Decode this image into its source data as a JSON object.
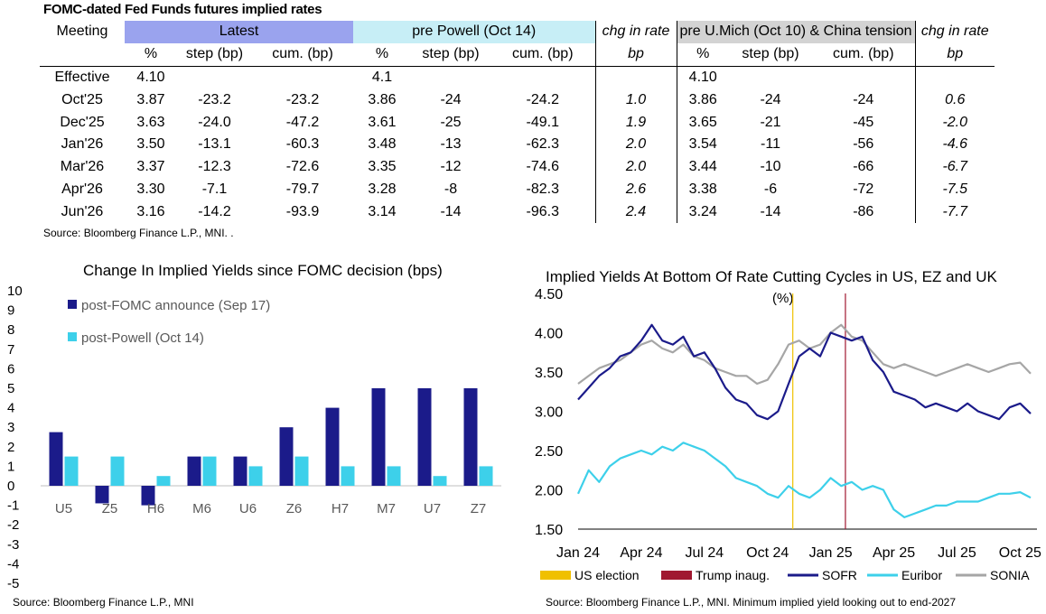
{
  "table": {
    "title": "FOMC-dated Fed Funds futures implied rates",
    "meeting_label": "Meeting",
    "groups": {
      "latest": "Latest",
      "powell": "pre Powell (Oct 14)",
      "chg1": "chg in rate",
      "umich": "pre U.Mich (Oct 10) & China tension",
      "chg2": "chg in rate"
    },
    "subheaders": [
      "%",
      "step (bp)",
      "cum. (bp)",
      "%",
      "step (bp)",
      "cum. (bp)",
      "bp",
      "%",
      "step (bp)",
      "cum. (bp)",
      "bp"
    ],
    "rows": [
      [
        "Effective",
        "4.10",
        "",
        "",
        "4.1",
        "",
        "",
        "",
        "4.10",
        "",
        "",
        ""
      ],
      [
        "Oct'25",
        "3.87",
        "-23.2",
        "-23.2",
        "3.86",
        "-24",
        "-24.2",
        "1.0",
        "3.86",
        "-24",
        "-24",
        "0.6"
      ],
      [
        "Dec'25",
        "3.63",
        "-24.0",
        "-47.2",
        "3.61",
        "-25",
        "-49.1",
        "1.9",
        "3.65",
        "-21",
        "-45",
        "-2.0"
      ],
      [
        "Jan'26",
        "3.50",
        "-13.1",
        "-60.3",
        "3.48",
        "-13",
        "-62.3",
        "2.0",
        "3.54",
        "-11",
        "-56",
        "-4.6"
      ],
      [
        "Mar'26",
        "3.37",
        "-12.3",
        "-72.6",
        "3.35",
        "-12",
        "-74.6",
        "2.0",
        "3.44",
        "-10",
        "-66",
        "-6.7"
      ],
      [
        "Apr'26",
        "3.30",
        "-7.1",
        "-79.7",
        "3.28",
        "-8",
        "-82.3",
        "2.6",
        "3.38",
        "-6",
        "-72",
        "-7.5"
      ],
      [
        "Jun'26",
        "3.16",
        "-14.2",
        "-93.9",
        "3.14",
        "-14",
        "-96.3",
        "2.4",
        "3.24",
        "-14",
        "-86",
        "-7.7"
      ]
    ],
    "source": "Source: Bloomberg Finance L.P., MNI. ."
  },
  "colors": {
    "latest_hdr": "#9aa3ee",
    "powell_hdr": "#c7eef6",
    "umich_hdr": "#d3d3d3",
    "navy": "#1b1b8a",
    "cyan": "#3dd0ea",
    "grey": "#a6a6a6",
    "gold": "#f0c000",
    "maroon": "#a01830"
  },
  "chart_data": [
    {
      "type": "bar",
      "title": "Change In Implied Yields since FOMC decision (bps)",
      "categories": [
        "U5",
        "Z5",
        "H6",
        "M6",
        "U6",
        "Z6",
        "H7",
        "M7",
        "U7",
        "Z7"
      ],
      "series": [
        {
          "name": "post-FOMC announce (Sep 17)",
          "values": [
            2.75,
            -0.9,
            -1.0,
            1.5,
            1.5,
            3.0,
            4.0,
            5.0,
            5.0,
            5.0
          ]
        },
        {
          "name": "post-Powell (Oct 14)",
          "values": [
            1.5,
            1.5,
            0.5,
            1.5,
            1.0,
            1.5,
            1.0,
            1.0,
            0.5,
            1.0
          ]
        }
      ],
      "ylim": [
        -5,
        10
      ],
      "yticks": [
        "10",
        "9",
        "8",
        "7",
        "6",
        "5",
        "4",
        "3",
        "2",
        "1",
        "0",
        "-1",
        "-2",
        "-3",
        "-4",
        "-5"
      ],
      "legend_position": "top-left",
      "source": "Source: Bloomberg Finance L.P., MNI"
    },
    {
      "type": "line",
      "title": "Implied Yields At Bottom Of Rate Cutting Cycles in US, EZ and UK",
      "unit_label": "(%)",
      "ylim": [
        1.5,
        4.5
      ],
      "yticks": [
        "4.50",
        "4.00",
        "3.50",
        "3.00",
        "2.50",
        "2.00",
        "1.50"
      ],
      "xticks": [
        "Jan 24",
        "Apr 24",
        "Jul 24",
        "Oct 24",
        "Jan 25",
        "Apr 25",
        "Jul 25",
        "Oct 25"
      ],
      "x_domain_months": [
        0,
        21.8
      ],
      "vlines": [
        {
          "name": "US election",
          "x": 10.2
        },
        {
          "name": "Trump inaug.",
          "x": 12.7
        }
      ],
      "series": [
        {
          "name": "SOFR",
          "x": [
            0,
            0.5,
            1,
            1.5,
            2,
            2.5,
            3,
            3.5,
            4,
            4.5,
            5,
            5.5,
            6,
            6.5,
            7,
            7.5,
            8,
            8.5,
            9,
            9.5,
            10,
            10.5,
            11,
            11.5,
            12,
            12.5,
            13,
            13.5,
            14,
            14.5,
            15,
            15.5,
            16,
            16.5,
            17,
            17.5,
            18,
            18.5,
            19,
            19.5,
            20,
            20.5,
            21,
            21.5
          ],
          "values": [
            3.15,
            3.3,
            3.45,
            3.55,
            3.7,
            3.75,
            3.9,
            4.1,
            3.9,
            3.85,
            3.95,
            3.7,
            3.75,
            3.55,
            3.3,
            3.15,
            3.1,
            2.95,
            2.9,
            3.0,
            3.35,
            3.7,
            3.8,
            3.7,
            4.0,
            3.95,
            3.9,
            3.95,
            3.65,
            3.5,
            3.25,
            3.2,
            3.15,
            3.05,
            3.1,
            3.05,
            3.0,
            3.1,
            3.0,
            2.95,
            2.9,
            3.05,
            3.1,
            2.97
          ]
        },
        {
          "name": "Euribor",
          "x": [
            0,
            0.5,
            1,
            1.5,
            2,
            2.5,
            3,
            3.5,
            4,
            4.5,
            5,
            5.5,
            6,
            6.5,
            7,
            7.5,
            8,
            8.5,
            9,
            9.5,
            10,
            10.5,
            11,
            11.5,
            12,
            12.5,
            13,
            13.5,
            14,
            14.5,
            15,
            15.5,
            16,
            16.5,
            17,
            17.5,
            18,
            18.5,
            19,
            19.5,
            20,
            20.5,
            21,
            21.5
          ],
          "values": [
            1.95,
            2.25,
            2.1,
            2.3,
            2.4,
            2.45,
            2.5,
            2.45,
            2.55,
            2.5,
            2.6,
            2.55,
            2.5,
            2.4,
            2.3,
            2.15,
            2.1,
            2.05,
            1.95,
            1.9,
            2.05,
            1.95,
            1.9,
            2.0,
            2.15,
            2.05,
            2.1,
            2.0,
            2.05,
            2.0,
            1.75,
            1.65,
            1.7,
            1.75,
            1.8,
            1.8,
            1.85,
            1.85,
            1.85,
            1.9,
            1.95,
            1.95,
            1.97,
            1.9
          ]
        },
        {
          "name": "SONIA",
          "x": [
            0,
            0.5,
            1,
            1.5,
            2,
            2.5,
            3,
            3.5,
            4,
            4.5,
            5,
            5.5,
            6,
            6.5,
            7,
            7.5,
            8,
            8.5,
            9,
            9.5,
            10,
            10.5,
            11,
            11.5,
            12,
            12.5,
            13,
            13.5,
            14,
            14.5,
            15,
            15.5,
            16,
            16.5,
            17,
            17.5,
            18,
            18.5,
            19,
            19.5,
            20,
            20.5,
            21,
            21.5
          ],
          "values": [
            3.35,
            3.45,
            3.55,
            3.6,
            3.65,
            3.75,
            3.85,
            3.9,
            3.8,
            3.75,
            3.85,
            3.7,
            3.65,
            3.55,
            3.5,
            3.45,
            3.45,
            3.35,
            3.4,
            3.6,
            3.85,
            3.9,
            3.8,
            3.85,
            4.0,
            4.1,
            3.95,
            3.9,
            3.75,
            3.6,
            3.55,
            3.6,
            3.55,
            3.5,
            3.45,
            3.5,
            3.55,
            3.6,
            3.55,
            3.5,
            3.55,
            3.6,
            3.62,
            3.48
          ]
        }
      ],
      "source": "Source: Bloomberg Finance L.P., MNI. Minimum implied yield looking out to end-2027"
    }
  ]
}
